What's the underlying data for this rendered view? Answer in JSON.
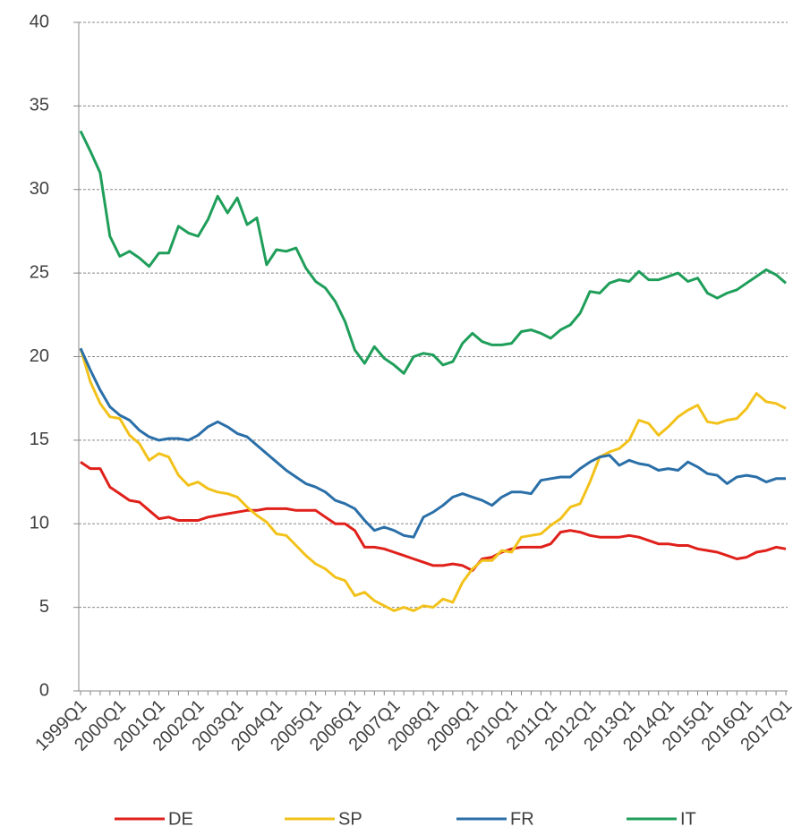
{
  "chart_data": {
    "type": "line",
    "categories": [
      "1999Q1",
      null,
      null,
      null,
      "2000Q1",
      null,
      null,
      null,
      "2001Q1",
      null,
      null,
      null,
      "2002Q1",
      null,
      null,
      null,
      "2003Q1",
      null,
      null,
      null,
      "2004Q1",
      null,
      null,
      null,
      "2005Q1",
      null,
      null,
      null,
      "2006Q1",
      null,
      null,
      null,
      "2007Q1",
      null,
      null,
      null,
      "2008Q1",
      null,
      null,
      null,
      "2009Q1",
      null,
      null,
      null,
      "2010Q1",
      null,
      null,
      null,
      "2011Q1",
      null,
      null,
      null,
      "2012Q1",
      null,
      null,
      null,
      "2013Q1",
      null,
      null,
      null,
      "2014Q1",
      null,
      null,
      null,
      "2015Q1",
      null,
      null,
      null,
      "2016Q1",
      null,
      null,
      null,
      "2017Q1"
    ],
    "series": [
      {
        "name": "DE",
        "color": "#e0201b",
        "values": [
          13.7,
          13.3,
          13.3,
          12.2,
          11.8,
          11.4,
          11.3,
          10.8,
          10.3,
          10.4,
          10.2,
          10.2,
          10.2,
          10.4,
          10.5,
          10.6,
          10.7,
          10.8,
          10.8,
          10.9,
          10.9,
          10.9,
          10.8,
          10.8,
          10.8,
          10.4,
          10.0,
          10.0,
          9.6,
          8.6,
          8.6,
          8.5,
          8.3,
          8.1,
          7.9,
          7.7,
          7.5,
          7.5,
          7.6,
          7.5,
          7.2,
          7.9,
          8.0,
          8.3,
          8.5,
          8.6,
          8.6,
          8.6,
          8.8,
          9.5,
          9.6,
          9.5,
          9.3,
          9.2,
          9.2,
          9.2,
          9.3,
          9.2,
          9.0,
          8.8,
          8.8,
          8.7,
          8.7,
          8.5,
          8.4,
          8.3,
          8.1,
          7.9,
          8.0,
          8.3,
          8.4,
          8.6,
          8.5
        ]
      },
      {
        "name": "SP",
        "color": "#f2c21b",
        "values": [
          20.5,
          18.5,
          17.2,
          16.4,
          16.3,
          15.3,
          14.8,
          13.8,
          14.2,
          14.0,
          12.9,
          12.3,
          12.5,
          12.1,
          11.9,
          11.8,
          11.6,
          11.0,
          10.5,
          10.1,
          9.4,
          9.3,
          8.7,
          8.1,
          7.6,
          7.3,
          6.8,
          6.6,
          5.7,
          5.9,
          5.4,
          5.1,
          4.8,
          5.0,
          4.8,
          5.1,
          5.0,
          5.5,
          5.3,
          6.5,
          7.3,
          7.8,
          7.8,
          8.4,
          8.3,
          9.2,
          9.3,
          9.4,
          9.9,
          10.3,
          11.0,
          11.2,
          12.5,
          14.0,
          14.3,
          14.5,
          15.0,
          16.2,
          16.0,
          15.3,
          15.8,
          16.4,
          16.8,
          17.1,
          16.1,
          16.0,
          16.2,
          16.3,
          16.9,
          17.8,
          17.3,
          17.2,
          16.9
        ]
      },
      {
        "name": "FR",
        "color": "#2a6fa8",
        "values": [
          20.5,
          19.2,
          18.0,
          17.0,
          16.5,
          16.2,
          15.6,
          15.2,
          15.0,
          15.1,
          15.1,
          15.0,
          15.3,
          15.8,
          16.1,
          15.8,
          15.4,
          15.2,
          14.7,
          14.2,
          13.7,
          13.2,
          12.8,
          12.4,
          12.2,
          11.9,
          11.4,
          11.2,
          10.9,
          10.2,
          9.6,
          9.8,
          9.6,
          9.3,
          9.2,
          10.4,
          10.7,
          11.1,
          11.6,
          11.8,
          11.6,
          11.4,
          11.1,
          11.6,
          11.9,
          11.9,
          11.8,
          12.6,
          12.7,
          12.8,
          12.8,
          13.3,
          13.7,
          14.0,
          14.1,
          13.5,
          13.8,
          13.6,
          13.5,
          13.2,
          13.3,
          13.2,
          13.7,
          13.4,
          13.0,
          12.9,
          12.4,
          12.8,
          12.9,
          12.8,
          12.5,
          12.7,
          12.7
        ]
      },
      {
        "name": "IT",
        "color": "#1f9e5a",
        "values": [
          33.5,
          32.3,
          31.0,
          27.2,
          26.0,
          26.3,
          25.9,
          25.4,
          26.2,
          26.2,
          27.8,
          27.4,
          27.2,
          28.2,
          29.6,
          28.6,
          29.5,
          27.9,
          28.3,
          25.5,
          26.4,
          26.3,
          26.5,
          25.3,
          24.5,
          24.1,
          23.3,
          22.1,
          20.4,
          19.6,
          20.6,
          19.9,
          19.5,
          19.0,
          20.0,
          20.2,
          20.1,
          19.5,
          19.7,
          20.8,
          21.4,
          20.9,
          20.7,
          20.7,
          20.8,
          21.5,
          21.6,
          21.4,
          21.1,
          21.6,
          21.9,
          22.6,
          23.9,
          23.8,
          24.4,
          24.6,
          24.5,
          25.1,
          24.6,
          24.6,
          24.8,
          25.0,
          24.5,
          24.7,
          23.8,
          23.5,
          23.8,
          24.0,
          24.4,
          24.8,
          25.2,
          24.9,
          24.4
        ]
      }
    ],
    "ylim": [
      0,
      40
    ],
    "yticks": [
      0,
      5,
      10,
      15,
      20,
      25,
      30,
      35,
      40
    ],
    "grid": true
  }
}
